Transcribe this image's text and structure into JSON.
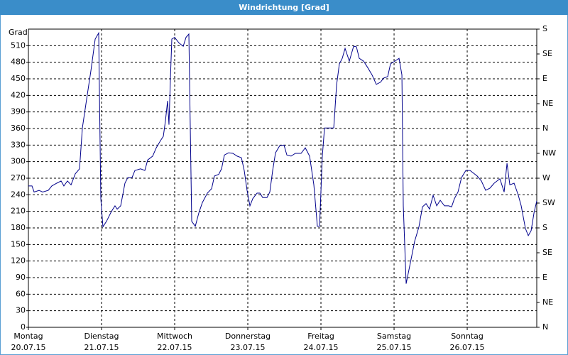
{
  "chart_data": {
    "type": "line",
    "title": "Windrichtung [Grad]",
    "y_label": "Grad",
    "color": "#00008b",
    "grid": true,
    "x": [
      0,
      0.049,
      0.078,
      0.146,
      0.194,
      0.272,
      0.32,
      0.388,
      0.447,
      0.485,
      0.534,
      0.583,
      0.641,
      0.699,
      0.738,
      0.796,
      0.854,
      0.913,
      0.961,
      0.99,
      1.019,
      1.068,
      1.136,
      1.184,
      1.214,
      1.262,
      1.32,
      1.359,
      1.417,
      1.456,
      1.534,
      1.592,
      1.631,
      1.699,
      1.748,
      1.806,
      1.845,
      1.874,
      1.903,
      1.922,
      1.942,
      1.961,
      2.0,
      2.058,
      2.117,
      2.155,
      2.194,
      2.233,
      2.282,
      2.33,
      2.379,
      2.447,
      2.505,
      2.544,
      2.602,
      2.641,
      2.68,
      2.738,
      2.796,
      2.854,
      2.913,
      2.951,
      2.99,
      3.029,
      3.068,
      3.126,
      3.165,
      3.204,
      3.262,
      3.301,
      3.34,
      3.379,
      3.437,
      3.495,
      3.534,
      3.592,
      3.65,
      3.728,
      3.786,
      3.845,
      3.903,
      3.951,
      3.981,
      4.019,
      4.049,
      4.175,
      4.214,
      4.252,
      4.291,
      4.33,
      4.388,
      4.447,
      4.485,
      4.524,
      4.583,
      4.641,
      4.699,
      4.757,
      4.816,
      4.854,
      4.913,
      4.951,
      5.01,
      5.068,
      5.107,
      5.126,
      5.165,
      5.223,
      5.282,
      5.34,
      5.388,
      5.437,
      5.485,
      5.534,
      5.583,
      5.631,
      5.689,
      5.748,
      5.786,
      5.825,
      5.874,
      5.922,
      5.981,
      6.039,
      6.097,
      6.136,
      6.194,
      6.252,
      6.311,
      6.369,
      6.408,
      6.447,
      6.505,
      6.544,
      6.583,
      6.641,
      6.699,
      6.738,
      6.796,
      6.835,
      6.874,
      6.913,
      6.951
    ],
    "values": [
      256,
      256,
      245,
      248,
      245,
      248,
      256,
      261,
      265,
      256,
      265,
      258,
      278,
      287,
      361,
      413,
      464,
      522,
      533,
      233,
      182,
      192,
      210,
      220,
      214,
      220,
      261,
      271,
      271,
      284,
      287,
      284,
      303,
      310,
      325,
      338,
      346,
      374,
      410,
      367,
      451,
      522,
      525,
      515,
      509,
      525,
      531,
      192,
      183,
      207,
      226,
      243,
      251,
      274,
      277,
      287,
      312,
      316,
      315,
      310,
      307,
      284,
      248,
      220,
      233,
      243,
      243,
      235,
      235,
      245,
      284,
      316,
      329,
      330,
      312,
      310,
      315,
      315,
      325,
      310,
      258,
      183,
      183,
      310,
      361,
      361,
      439,
      477,
      487,
      505,
      482,
      509,
      508,
      487,
      482,
      470,
      457,
      440,
      444,
      451,
      454,
      477,
      482,
      487,
      457,
      220,
      79,
      117,
      156,
      182,
      218,
      224,
      214,
      239,
      220,
      230,
      220,
      220,
      218,
      233,
      245,
      271,
      284,
      284,
      278,
      274,
      265,
      248,
      252,
      261,
      265,
      269,
      245,
      297,
      258,
      261,
      239,
      220,
      179,
      166,
      175,
      207,
      229
    ],
    "xlim": [
      0,
      6.951
    ],
    "xticks": [
      {
        "value": 0,
        "label": [
          "Montag",
          "20.07.15"
        ]
      },
      {
        "value": 1,
        "label": [
          "Dienstag",
          "21.07.15"
        ]
      },
      {
        "value": 2,
        "label": [
          "Mittwoch",
          "22.07.15"
        ]
      },
      {
        "value": 3,
        "label": [
          "Donnerstag",
          "23.07.15"
        ]
      },
      {
        "value": 4,
        "label": [
          "Freitag",
          "24.07.15"
        ]
      },
      {
        "value": 5,
        "label": [
          "Samstag",
          "25.07.15"
        ]
      },
      {
        "value": 6,
        "label": [
          "Sonntag",
          "26.07.15"
        ]
      }
    ],
    "ylim": [
      0,
      540
    ],
    "yticks": [
      0,
      30,
      60,
      90,
      120,
      150,
      180,
      210,
      240,
      270,
      300,
      330,
      360,
      390,
      420,
      450,
      480,
      510
    ],
    "y2lim": [
      0,
      540
    ],
    "y2ticks": [
      {
        "value": 0,
        "label": "N"
      },
      {
        "value": 45,
        "label": "NE"
      },
      {
        "value": 90,
        "label": "E"
      },
      {
        "value": 135,
        "label": "SE"
      },
      {
        "value": 180,
        "label": "S"
      },
      {
        "value": 225,
        "label": "SW"
      },
      {
        "value": 270,
        "label": "W"
      },
      {
        "value": 315,
        "label": "NW"
      },
      {
        "value": 360,
        "label": "N"
      },
      {
        "value": 405,
        "label": "NE"
      },
      {
        "value": 450,
        "label": "E"
      },
      {
        "value": 495,
        "label": "SE"
      },
      {
        "value": 540,
        "label": "S"
      }
    ]
  }
}
